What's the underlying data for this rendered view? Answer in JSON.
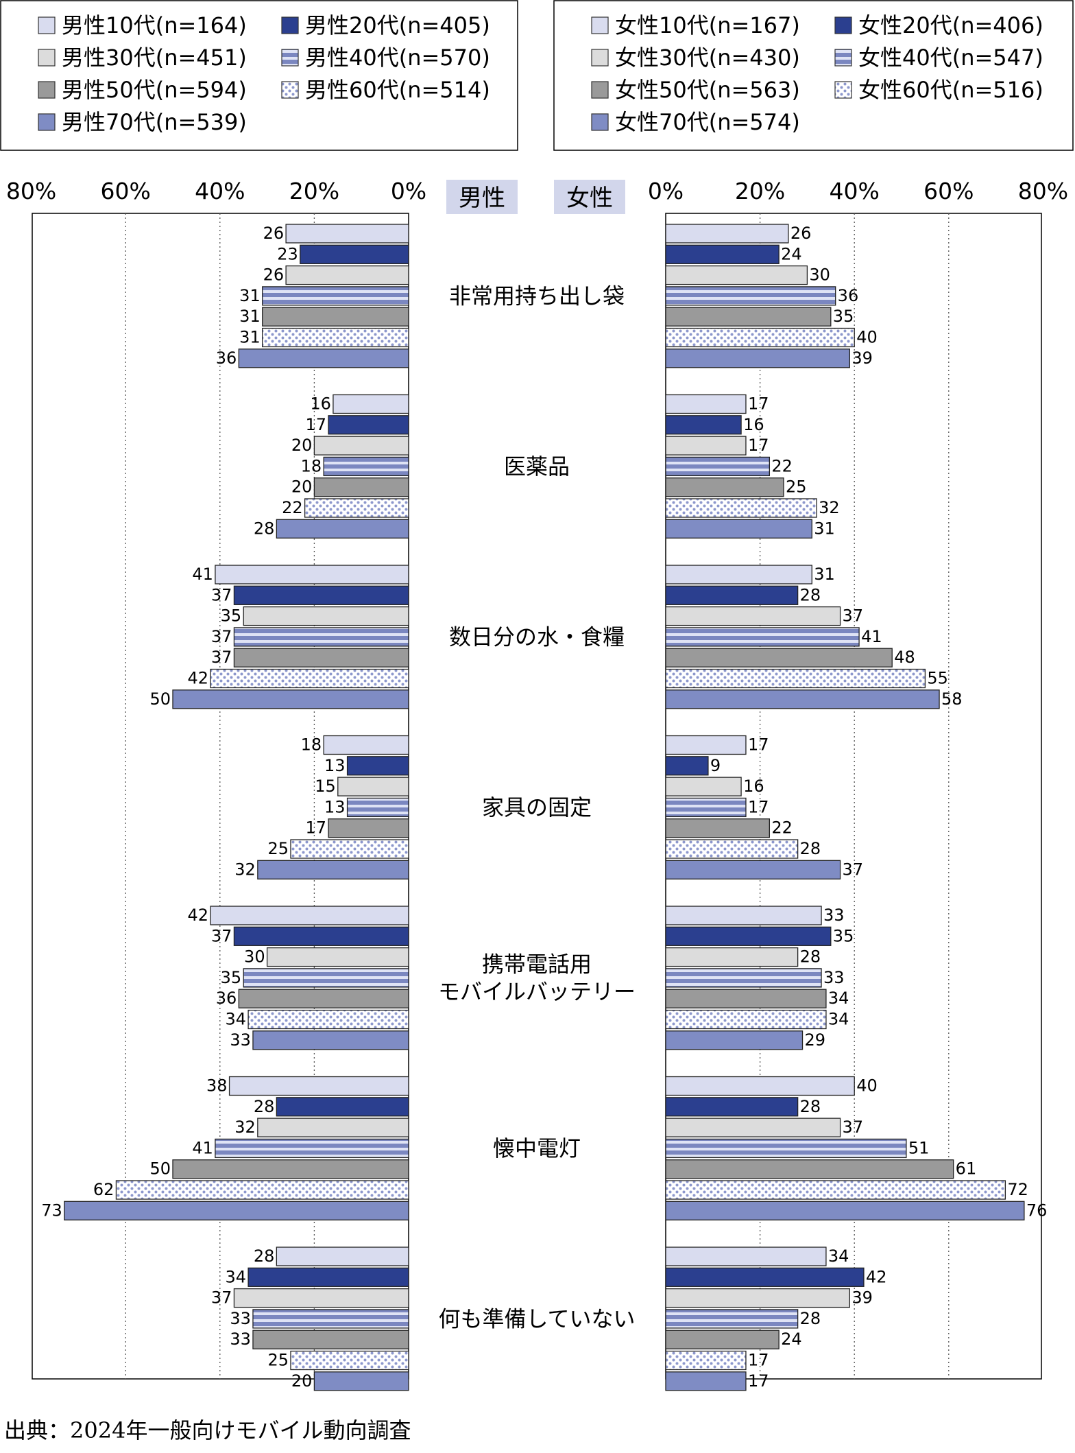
{
  "chart_data": {
    "type": "bar",
    "orientation": "horizontal",
    "panel_labels": [
      "男性",
      "女性"
    ],
    "categories": [
      "非常用持ち出し袋",
      "医薬品",
      "数日分の水・食糧",
      "家具の固定",
      "携帯電話用\nモバイルバッテリー",
      "懐中電灯",
      "何も準備していない"
    ],
    "xlim": [
      0,
      80
    ],
    "x_ticks": [
      "0%",
      "20%",
      "40%",
      "60%",
      "80%"
    ],
    "grid": true,
    "panels": [
      {
        "name": "男性",
        "series": [
          {
            "name": "男性10代(n=164)",
            "values": [
              26,
              16,
              41,
              18,
              42,
              38,
              28
            ],
            "color": "#d9dcef",
            "pattern": "solid"
          },
          {
            "name": "男性20代(n=405)",
            "values": [
              23,
              17,
              37,
              13,
              37,
              28,
              34
            ],
            "color": "#2b3f8f",
            "pattern": "solid"
          },
          {
            "name": "男性30代(n=451)",
            "values": [
              26,
              20,
              35,
              15,
              30,
              32,
              37
            ],
            "color": "#dcdcdc",
            "pattern": "solid"
          },
          {
            "name": "男性40代(n=570)",
            "values": [
              31,
              18,
              37,
              13,
              35,
              41,
              33
            ],
            "color": "#7b87c0",
            "pattern": "stripes"
          },
          {
            "name": "男性50代(n=594)",
            "values": [
              31,
              20,
              37,
              17,
              36,
              50,
              33
            ],
            "color": "#9a9a9a",
            "pattern": "solid"
          },
          {
            "name": "男性60代(n=514)",
            "values": [
              31,
              22,
              42,
              25,
              34,
              62,
              25
            ],
            "color": "#9aa4d4",
            "pattern": "dots"
          },
          {
            "name": "男性70代(n=539)",
            "values": [
              36,
              28,
              50,
              32,
              33,
              73,
              20
            ],
            "color": "#7f8cc4",
            "pattern": "solid"
          }
        ]
      },
      {
        "name": "女性",
        "series": [
          {
            "name": "女性10代(n=167)",
            "values": [
              26,
              17,
              31,
              17,
              33,
              40,
              34
            ],
            "color": "#d9dcef",
            "pattern": "solid"
          },
          {
            "name": "女性20代(n=406)",
            "values": [
              24,
              16,
              28,
              9,
              35,
              28,
              42
            ],
            "color": "#2b3f8f",
            "pattern": "solid"
          },
          {
            "name": "女性30代(n=430)",
            "values": [
              30,
              17,
              37,
              16,
              28,
              37,
              39
            ],
            "color": "#dcdcdc",
            "pattern": "solid"
          },
          {
            "name": "女性40代(n=547)",
            "values": [
              36,
              22,
              41,
              17,
              33,
              51,
              28
            ],
            "color": "#7b87c0",
            "pattern": "stripes"
          },
          {
            "name": "女性50代(n=563)",
            "values": [
              35,
              25,
              48,
              22,
              34,
              61,
              24
            ],
            "color": "#9a9a9a",
            "pattern": "solid"
          },
          {
            "name": "女性60代(n=516)",
            "values": [
              40,
              32,
              55,
              28,
              34,
              72,
              17
            ],
            "color": "#9aa4d4",
            "pattern": "dots"
          },
          {
            "name": "女性70代(n=574)",
            "values": [
              39,
              31,
              58,
              37,
              29,
              76,
              17
            ],
            "color": "#7f8cc4",
            "pattern": "solid"
          }
        ]
      }
    ],
    "source": "出典：2024年一般向けモバイル動向調査"
  }
}
